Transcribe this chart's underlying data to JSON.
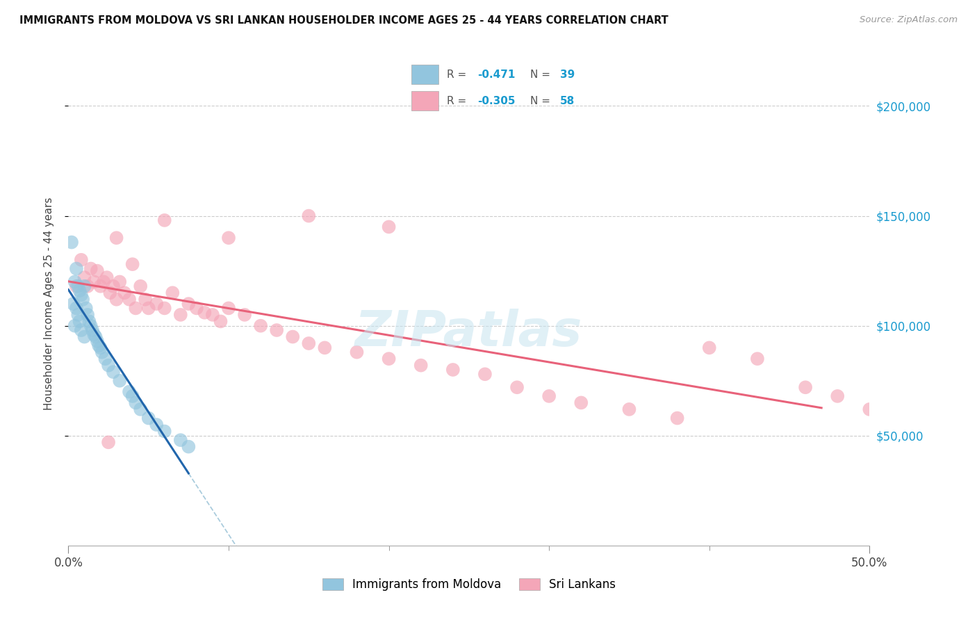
{
  "title": "IMMIGRANTS FROM MOLDOVA VS SRI LANKAN HOUSEHOLDER INCOME AGES 25 - 44 YEARS CORRELATION CHART",
  "source": "Source: ZipAtlas.com",
  "ylabel": "Householder Income Ages 25 - 44 years",
  "legend_label1": "Immigrants from Moldova",
  "legend_label2": "Sri Lankans",
  "ytick_labels": [
    "$50,000",
    "$100,000",
    "$150,000",
    "$200,000"
  ],
  "ytick_values": [
    50000,
    100000,
    150000,
    200000
  ],
  "xlim": [
    0.0,
    0.5
  ],
  "ylim": [
    0,
    220000
  ],
  "watermark": "ZIPatlas",
  "blue_color": "#92c5de",
  "pink_color": "#f4a6b8",
  "blue_line_color": "#2166ac",
  "pink_line_color": "#e8627a",
  "blue_R": "-0.471",
  "blue_N": "39",
  "pink_R": "-0.305",
  "pink_N": "58",
  "moldova_x": [
    0.002,
    0.003,
    0.004,
    0.004,
    0.005,
    0.005,
    0.006,
    0.006,
    0.007,
    0.007,
    0.008,
    0.008,
    0.009,
    0.01,
    0.01,
    0.011,
    0.012,
    0.013,
    0.014,
    0.015,
    0.016,
    0.017,
    0.018,
    0.019,
    0.02,
    0.021,
    0.023,
    0.025,
    0.028,
    0.032,
    0.038,
    0.04,
    0.042,
    0.045,
    0.05,
    0.055,
    0.06,
    0.07,
    0.075
  ],
  "moldova_y": [
    138000,
    110000,
    120000,
    100000,
    126000,
    108000,
    118000,
    105000,
    116000,
    102000,
    114000,
    98000,
    112000,
    118000,
    95000,
    108000,
    105000,
    102000,
    100000,
    98000,
    96000,
    95000,
    93000,
    91000,
    90000,
    88000,
    85000,
    82000,
    79000,
    75000,
    70000,
    68000,
    65000,
    62000,
    58000,
    55000,
    52000,
    48000,
    45000
  ],
  "srilanka_x": [
    0.005,
    0.008,
    0.01,
    0.012,
    0.014,
    0.016,
    0.018,
    0.02,
    0.022,
    0.024,
    0.026,
    0.028,
    0.03,
    0.032,
    0.035,
    0.038,
    0.04,
    0.042,
    0.045,
    0.048,
    0.05,
    0.055,
    0.06,
    0.065,
    0.07,
    0.075,
    0.08,
    0.085,
    0.09,
    0.095,
    0.1,
    0.11,
    0.12,
    0.13,
    0.14,
    0.15,
    0.16,
    0.18,
    0.2,
    0.22,
    0.24,
    0.26,
    0.28,
    0.3,
    0.32,
    0.35,
    0.38,
    0.4,
    0.43,
    0.46,
    0.48,
    0.5,
    0.025,
    0.03,
    0.06,
    0.1,
    0.15,
    0.2
  ],
  "srilanka_y": [
    118000,
    130000,
    122000,
    118000,
    126000,
    120000,
    125000,
    118000,
    120000,
    122000,
    115000,
    118000,
    112000,
    120000,
    115000,
    112000,
    128000,
    108000,
    118000,
    112000,
    108000,
    110000,
    108000,
    115000,
    105000,
    110000,
    108000,
    106000,
    105000,
    102000,
    108000,
    105000,
    100000,
    98000,
    95000,
    92000,
    90000,
    88000,
    85000,
    82000,
    80000,
    78000,
    72000,
    68000,
    65000,
    62000,
    58000,
    90000,
    85000,
    72000,
    68000,
    62000,
    47000,
    140000,
    148000,
    140000,
    150000,
    145000
  ]
}
